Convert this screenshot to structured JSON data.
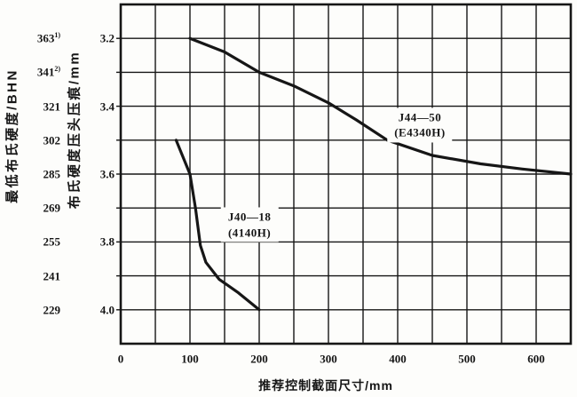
{
  "chart_data": {
    "type": "line",
    "x_axis": {
      "title": "推荐控制截面尺寸/mm",
      "min": 0,
      "max": 650,
      "grid_step": 50,
      "ticks": [
        {
          "label": "0",
          "at": 0
        },
        {
          "label": "100",
          "at": 100
        },
        {
          "label": "200",
          "at": 200
        },
        {
          "label": "300",
          "at": 300
        },
        {
          "label": "400",
          "at": 400
        },
        {
          "label": "500",
          "at": 500
        },
        {
          "label": "600",
          "at": 600
        }
      ]
    },
    "y_axis_indent": {
      "title": "布氏硬度压头压痕/mm",
      "min": 3.1,
      "max": 4.1,
      "grid_step": 0.1,
      "direction": "increases-downward",
      "ticks": [
        {
          "label": "3.2",
          "at": 3.2
        },
        {
          "label": "3.4",
          "at": 3.4
        },
        {
          "label": "3.6",
          "at": 3.6
        },
        {
          "label": "3.8",
          "at": 3.8
        },
        {
          "label": "4.0",
          "at": 4.0
        }
      ]
    },
    "y_axis_bhn": {
      "title": "最低布氏硬度/BHN",
      "ticks": [
        {
          "label": "363",
          "sup": "1)",
          "at": 3.2
        },
        {
          "label": "341",
          "sup": "2)",
          "at": 3.3
        },
        {
          "label": "321",
          "sup": "",
          "at": 3.4
        },
        {
          "label": "302",
          "sup": "",
          "at": 3.5
        },
        {
          "label": "285",
          "sup": "",
          "at": 3.6
        },
        {
          "label": "269",
          "sup": "",
          "at": 3.7
        },
        {
          "label": "255",
          "sup": "",
          "at": 3.8
        },
        {
          "label": "241",
          "sup": "",
          "at": 3.9
        },
        {
          "label": "229",
          "sup": "",
          "at": 4.0
        }
      ]
    },
    "series": [
      {
        "name": "J44—50",
        "subname": "(E4340H)",
        "label_anchor": {
          "x": 432,
          "y": 3.455
        },
        "points": [
          [
            100,
            3.2
          ],
          [
            150,
            3.24
          ],
          [
            200,
            3.3
          ],
          [
            250,
            3.34
          ],
          [
            300,
            3.39
          ],
          [
            340,
            3.44
          ],
          [
            385,
            3.5
          ],
          [
            450,
            3.545
          ],
          [
            520,
            3.57
          ],
          [
            580,
            3.585
          ],
          [
            650,
            3.6
          ]
        ]
      },
      {
        "name": "J40—18",
        "subname": "(4140H)",
        "label_anchor": {
          "x": 186,
          "y": 3.75
        },
        "points": [
          [
            80,
            3.5
          ],
          [
            100,
            3.6
          ],
          [
            108,
            3.7
          ],
          [
            115,
            3.81
          ],
          [
            123,
            3.86
          ],
          [
            142,
            3.91
          ],
          [
            170,
            3.95
          ],
          [
            200,
            4.0
          ]
        ]
      }
    ],
    "grid": "on",
    "styles": {
      "ink": "#161616",
      "paper": "#fdfdfb",
      "grid_width": 1.4,
      "frame_width": 2.6,
      "curve_width": 3.2,
      "tick_len": 5
    }
  }
}
